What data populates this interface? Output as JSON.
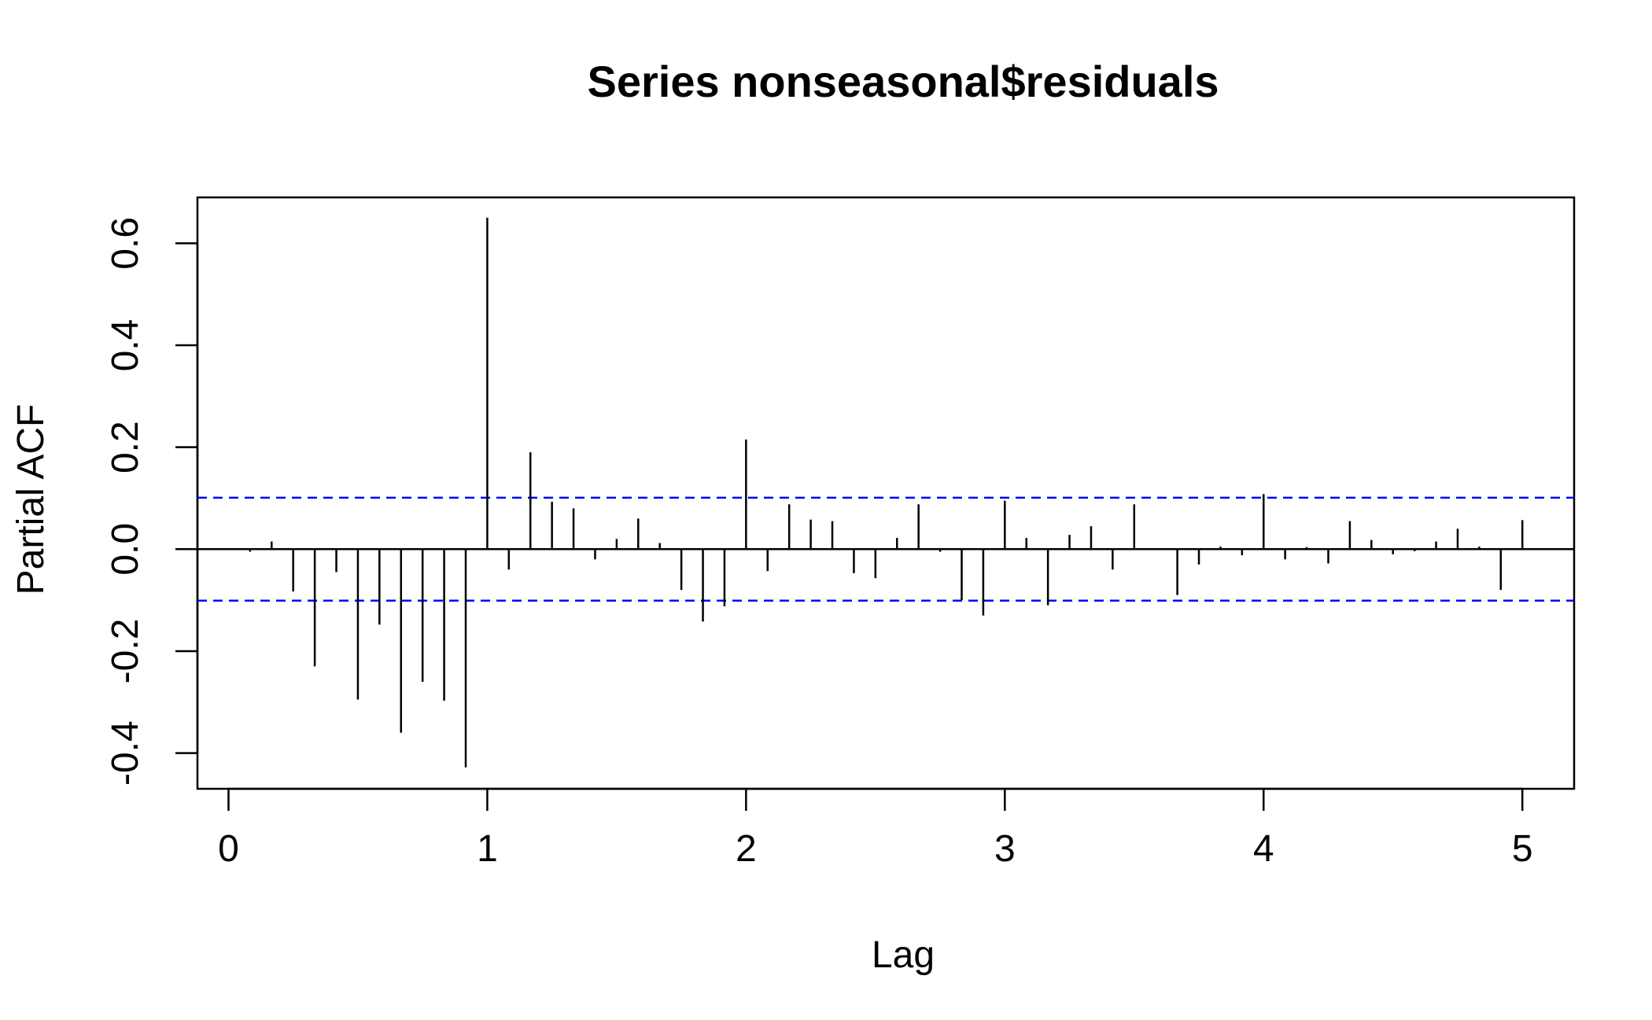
{
  "chart_data": {
    "type": "bar",
    "title": "Series  nonseasonal$residuals",
    "xlabel": "Lag",
    "ylabel": "Partial ACF",
    "xlim": [
      -0.12,
      5.2
    ],
    "ylim": [
      -0.47,
      0.69
    ],
    "x_ticks": [
      0,
      1,
      2,
      3,
      4,
      5
    ],
    "x_tick_labels": [
      "0",
      "1",
      "2",
      "3",
      "4",
      "5"
    ],
    "y_ticks": [
      -0.4,
      -0.2,
      0.0,
      0.2,
      0.4,
      0.6
    ],
    "y_tick_labels": [
      "-0.4",
      "-0.2",
      "0.0",
      "0.2",
      "0.4",
      "0.6"
    ],
    "confidence_limit": 0.101,
    "confidence_color": "#0000ff",
    "bar_color": "#000000",
    "lag_step": 0.0833333,
    "values": [
      -0.005,
      0.015,
      -0.083,
      -0.23,
      -0.045,
      -0.295,
      -0.148,
      -0.36,
      -0.26,
      -0.297,
      -0.428,
      0.65,
      -0.04,
      0.19,
      0.093,
      0.08,
      -0.02,
      0.02,
      0.06,
      0.012,
      -0.08,
      -0.142,
      -0.112,
      0.215,
      -0.043,
      0.088,
      0.058,
      0.055,
      -0.047,
      -0.057,
      0.022,
      0.088,
      -0.005,
      -0.1,
      -0.13,
      0.095,
      0.022,
      -0.11,
      0.028,
      0.045,
      -0.04,
      0.088,
      0.0,
      -0.09,
      -0.03,
      0.005,
      -0.012,
      0.108,
      -0.02,
      0.004,
      -0.028,
      0.055,
      0.018,
      -0.01,
      -0.004,
      0.015,
      0.04,
      0.005,
      -0.08,
      0.057
    ]
  }
}
